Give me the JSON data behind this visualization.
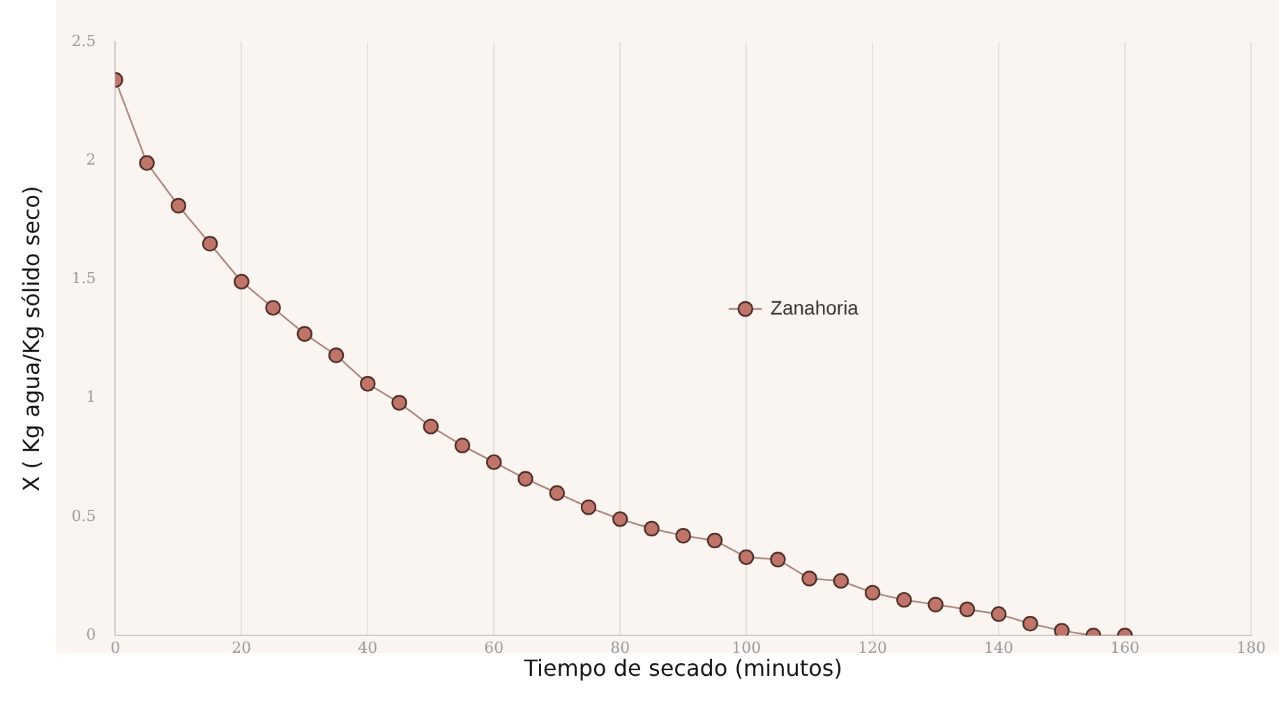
{
  "chart_data": {
    "type": "line",
    "xlabel": "Tiempo de secado (minutos)",
    "ylabel": "X ( Kg agua/Kg sólido seco)",
    "x": [
      0,
      5,
      10,
      15,
      20,
      25,
      30,
      35,
      40,
      45,
      50,
      55,
      60,
      65,
      70,
      75,
      80,
      85,
      90,
      95,
      100,
      105,
      110,
      115,
      120,
      125,
      130,
      135,
      140,
      145,
      150,
      155,
      160
    ],
    "series": [
      {
        "name": "Zanahoria",
        "color": "#c0756a",
        "values": [
          2.34,
          1.99,
          1.81,
          1.65,
          1.49,
          1.38,
          1.27,
          1.18,
          1.06,
          0.98,
          0.88,
          0.8,
          0.73,
          0.66,
          0.6,
          0.54,
          0.49,
          0.45,
          0.42,
          0.4,
          0.33,
          0.32,
          0.24,
          0.23,
          0.18,
          0.15,
          0.13,
          0.11,
          0.09,
          0.05,
          0.02,
          0,
          0
        ]
      }
    ],
    "xlim": [
      0,
      180
    ],
    "xticks": [
      0,
      20,
      40,
      60,
      80,
      100,
      120,
      140,
      160,
      180
    ],
    "ylim": [
      0,
      2.5
    ],
    "yticks": [
      0,
      0.5,
      1,
      1.5,
      2,
      2.5
    ],
    "grid": "x",
    "legend": "right",
    "marker": "circle",
    "line_style": "solid"
  }
}
